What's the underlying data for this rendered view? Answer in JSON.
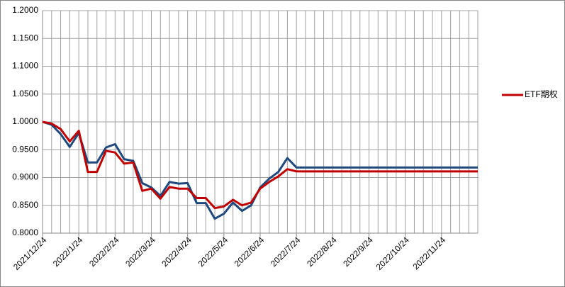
{
  "chart_data": {
    "type": "line",
    "categories": [
      "2021/12/24",
      null,
      null,
      null,
      "2022/1/24",
      null,
      null,
      null,
      "2022/2/24",
      null,
      null,
      null,
      "2022/3/24",
      null,
      null,
      null,
      "2022/4/24",
      null,
      null,
      null,
      "2022/5/24",
      null,
      null,
      null,
      "2022/6/24",
      null,
      null,
      null,
      "2022/7/24",
      null,
      null,
      null,
      "2022/8/24",
      null,
      null,
      null,
      "2022/9/24",
      null,
      null,
      null,
      "2022/10/24",
      null,
      null,
      null,
      "2022/11/24",
      null,
      null,
      null,
      null
    ],
    "series": [
      {
        "color": "#1f497d",
        "values": [
          1.0,
          0.995,
          0.978,
          0.955,
          0.98,
          0.927,
          0.927,
          0.954,
          0.96,
          0.933,
          0.93,
          0.89,
          0.882,
          0.867,
          0.892,
          0.889,
          0.89,
          0.854,
          0.854,
          0.826,
          0.835,
          0.855,
          0.84,
          0.85,
          0.882,
          0.898,
          0.91,
          0.935,
          0.918,
          0.918,
          0.918,
          0.918,
          0.918,
          0.918,
          0.918,
          0.918,
          0.918,
          0.918,
          0.918,
          0.918,
          0.918,
          0.918,
          0.918,
          0.918,
          0.918,
          0.918,
          0.918,
          0.918,
          0.918
        ]
      },
      {
        "name": "ETF期权",
        "color": "#c00000",
        "values": [
          1.0,
          0.997,
          0.987,
          0.965,
          0.984,
          0.91,
          0.91,
          0.948,
          0.945,
          0.925,
          0.927,
          0.876,
          0.88,
          0.862,
          0.883,
          0.88,
          0.88,
          0.863,
          0.863,
          0.845,
          0.848,
          0.86,
          0.85,
          0.855,
          0.88,
          0.892,
          0.902,
          0.915,
          0.911,
          0.911,
          0.911,
          0.911,
          0.911,
          0.911,
          0.911,
          0.911,
          0.911,
          0.911,
          0.911,
          0.911,
          0.911,
          0.911,
          0.911,
          0.911,
          0.911,
          0.911,
          0.911,
          0.911,
          0.911
        ]
      }
    ],
    "ylim": [
      0.8,
      1.2
    ],
    "yticks": [
      {
        "value": 0.8,
        "label": "0.8000"
      },
      {
        "value": 0.85,
        "label": "0.8500"
      },
      {
        "value": 0.9,
        "label": "0.9000"
      },
      {
        "value": 0.95,
        "label": "0.9500"
      },
      {
        "value": 1.0,
        "label": "1.0000"
      },
      {
        "value": 1.05,
        "label": "1.0500"
      },
      {
        "value": 1.1,
        "label": "1.1000"
      },
      {
        "value": 1.15,
        "label": "1.1500"
      },
      {
        "value": 1.2,
        "label": "1.2000"
      }
    ],
    "grid": true,
    "legend": "right"
  }
}
